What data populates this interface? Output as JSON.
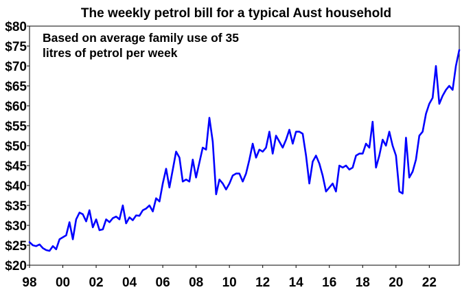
{
  "chart_data": {
    "type": "line",
    "title": "The weekly petrol bill for a typical Aust household",
    "annotation": [
      "Based on average family use of 35",
      "litres of petrol per week"
    ],
    "xlabel": "",
    "ylabel": "",
    "xlim": [
      1998.0,
      2023.8
    ],
    "ylim": [
      20,
      80
    ],
    "y_ticks": [
      20,
      25,
      30,
      35,
      40,
      45,
      50,
      55,
      60,
      65,
      70,
      75,
      80
    ],
    "y_tick_labels": [
      "$20",
      "$25",
      "$30",
      "$35",
      "$40",
      "$45",
      "$50",
      "$55",
      "$60",
      "$65",
      "$70",
      "$75",
      "$80"
    ],
    "x_ticks": [
      1998,
      2000,
      2002,
      2004,
      2006,
      2008,
      2010,
      2012,
      2014,
      2016,
      2018,
      2020,
      2022
    ],
    "x_tick_labels": [
      "98",
      "00",
      "02",
      "04",
      "06",
      "08",
      "10",
      "12",
      "14",
      "16",
      "18",
      "20",
      "22"
    ],
    "grid": false,
    "line_color": "#0000ff",
    "series": [
      {
        "x": [
          1998.0,
          1998.2,
          1998.4,
          1998.6,
          1998.8,
          1999.0,
          1999.2,
          1999.4,
          1999.6,
          1999.8,
          2000.0,
          2000.2,
          2000.4,
          2000.6,
          2000.8,
          2001.0,
          2001.2,
          2001.4,
          2001.6,
          2001.8,
          2002.0,
          2002.2,
          2002.4,
          2002.6,
          2002.8,
          2003.0,
          2003.2,
          2003.4,
          2003.6,
          2003.8,
          2004.0,
          2004.2,
          2004.4,
          2004.6,
          2004.8,
          2005.0,
          2005.2,
          2005.4,
          2005.6,
          2005.8,
          2006.0,
          2006.2,
          2006.4,
          2006.6,
          2006.8,
          2007.0,
          2007.2,
          2007.4,
          2007.6,
          2007.8,
          2008.0,
          2008.2,
          2008.4,
          2008.6,
          2008.8,
          2009.0,
          2009.2,
          2009.4,
          2009.6,
          2009.8,
          2010.0,
          2010.2,
          2010.4,
          2010.6,
          2010.8,
          2011.0,
          2011.2,
          2011.4,
          2011.6,
          2011.8,
          2012.0,
          2012.2,
          2012.4,
          2012.6,
          2012.8,
          2013.0,
          2013.2,
          2013.4,
          2013.6,
          2013.8,
          2014.0,
          2014.2,
          2014.4,
          2014.6,
          2014.8,
          2015.0,
          2015.2,
          2015.4,
          2015.6,
          2015.8,
          2016.0,
          2016.2,
          2016.4,
          2016.6,
          2016.8,
          2017.0,
          2017.2,
          2017.4,
          2017.6,
          2017.8,
          2018.0,
          2018.2,
          2018.4,
          2018.6,
          2018.8,
          2019.0,
          2019.2,
          2019.4,
          2019.6,
          2019.8,
          2020.0,
          2020.2,
          2020.4,
          2020.6,
          2020.8,
          2021.0,
          2021.2,
          2021.4,
          2021.6,
          2021.8,
          2022.0,
          2022.2,
          2022.4,
          2022.6,
          2022.8,
          2023.0,
          2023.2,
          2023.4,
          2023.6,
          2023.8
        ],
        "values": [
          25.8,
          25.0,
          24.8,
          25.2,
          24.3,
          23.8,
          23.6,
          24.8,
          24.0,
          26.5,
          27.0,
          27.5,
          30.8,
          26.5,
          31.5,
          33.2,
          32.8,
          31.0,
          33.8,
          29.5,
          31.5,
          28.8,
          29.0,
          31.5,
          30.8,
          31.8,
          32.2,
          31.5,
          35.0,
          30.5,
          32.0,
          31.3,
          32.5,
          32.4,
          33.8,
          34.2,
          35.0,
          33.5,
          36.8,
          36.0,
          40.5,
          44.2,
          39.5,
          44.0,
          48.5,
          47.0,
          41.0,
          41.5,
          41.0,
          46.5,
          42.0,
          45.8,
          49.5,
          49.0,
          57.0,
          51.0,
          37.8,
          41.5,
          40.5,
          39.0,
          40.5,
          42.5,
          43.0,
          43.0,
          41.0,
          43.0,
          46.5,
          50.5,
          47.0,
          49.0,
          48.5,
          49.5,
          53.5,
          48.0,
          52.5,
          51.0,
          49.5,
          51.5,
          54.0,
          50.5,
          53.5,
          53.5,
          53.0,
          47.5,
          40.5,
          46.0,
          47.5,
          45.5,
          42.5,
          38.5,
          39.5,
          40.5,
          38.5,
          45.0,
          44.5,
          45.0,
          44.0,
          44.5,
          47.5,
          48.0,
          48.0,
          50.5,
          49.5,
          56.0,
          44.5,
          47.5,
          51.5,
          50.0,
          53.5,
          50.0,
          47.5,
          38.5,
          38.0,
          52.0,
          42.0,
          43.5,
          46.5,
          52.5,
          53.5,
          58.0,
          60.5,
          62.0,
          70.0,
          60.5,
          62.5,
          64.0,
          65.0,
          64.0,
          70.0,
          74.0
        ]
      }
    ]
  }
}
